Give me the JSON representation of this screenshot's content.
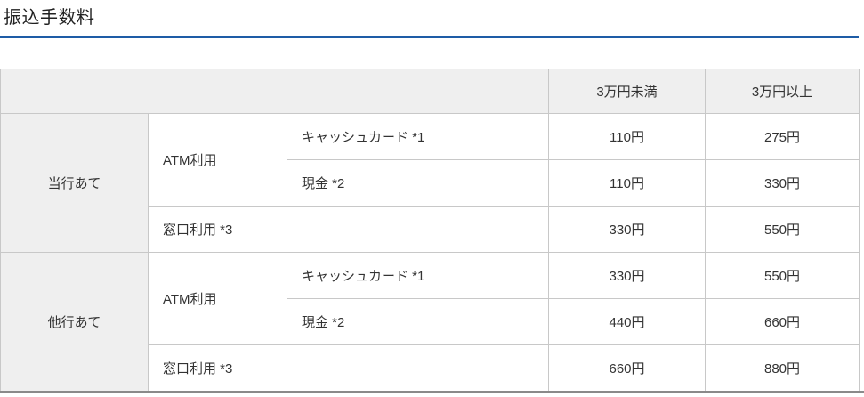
{
  "title": "振込手数料",
  "table": {
    "amount_headers": [
      "3万円未満",
      "3万円以上"
    ],
    "groups": [
      {
        "destination": "当行あて",
        "atm": {
          "label": "ATM利用",
          "rows": [
            {
              "method": "キャッシュカード *1",
              "under_30k": "110円",
              "over_30k": "275円"
            },
            {
              "method": "現金 *2",
              "under_30k": "110円",
              "over_30k": "330円"
            }
          ]
        },
        "counter": {
          "label": "窓口利用 *3",
          "under_30k": "330円",
          "over_30k": "550円"
        }
      },
      {
        "destination": "他行あて",
        "atm": {
          "label": "ATM利用",
          "rows": [
            {
              "method": "キャッシュカード *1",
              "under_30k": "330円",
              "over_30k": "550円"
            },
            {
              "method": "現金 *2",
              "under_30k": "440円",
              "over_30k": "660円"
            }
          ]
        },
        "counter": {
          "label": "窓口利用 *3",
          "under_30k": "660円",
          "over_30k": "880円"
        }
      }
    ]
  },
  "colors": {
    "accent_blue": "#1e5ca6",
    "header_bg": "#efefef",
    "cell_border": "#c8c8c8",
    "bottom_rule": "#8a8a8a",
    "text": "#333333"
  }
}
